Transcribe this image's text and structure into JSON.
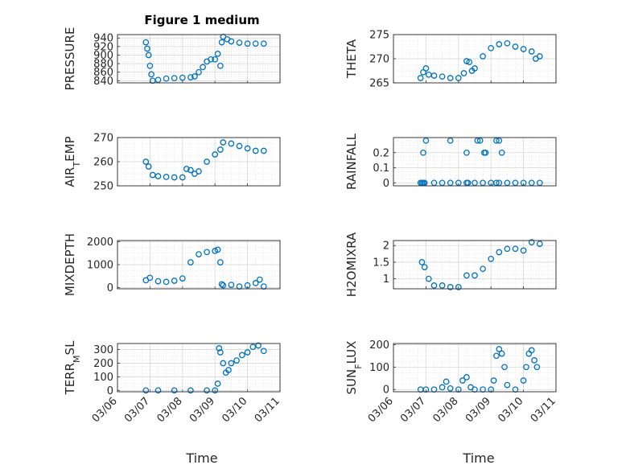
{
  "figure": {
    "title": "Figure 1 medium",
    "xlabel": "Time",
    "date_ticks": [
      "03/06",
      "03/07",
      "03/08",
      "03/09",
      "03/10",
      "03/11"
    ],
    "marker_color": "#0072BD",
    "grid": "on (major + minor)"
  },
  "chart_data": [
    {
      "type": "scatter",
      "ylabel": "PRESSURE",
      "xlim": [
        "03/06",
        "03/11"
      ],
      "ylim": [
        835,
        948
      ],
      "yticks": [
        840,
        860,
        880,
        900,
        920,
        940
      ],
      "x": [
        "03/06 21:00",
        "03/06 22:00",
        "03/06 23:00",
        "03/07 00:00",
        "03/07 01:00",
        "03/07 02:00",
        "03/07 06:00",
        "03/07 12:00",
        "03/07 18:00",
        "03/08 00:00",
        "03/08 06:00",
        "03/08 09:00",
        "03/08 12:00",
        "03/08 15:00",
        "03/08 18:00",
        "03/08 21:00",
        "03/09 00:00",
        "03/09 02:00",
        "03/09 04:00",
        "03/09 05:00",
        "03/09 06:00",
        "03/09 09:00",
        "03/09 12:00",
        "03/09 18:00",
        "03/10 00:00",
        "03/10 06:00",
        "03/10 12:00"
      ],
      "y": [
        930,
        915,
        900,
        875,
        855,
        840,
        842,
        845,
        846,
        847,
        848,
        850,
        860,
        872,
        885,
        890,
        890,
        903,
        875,
        930,
        943,
        937,
        932,
        929,
        927,
        927,
        927
      ]
    },
    {
      "type": "scatter",
      "ylabel": "THETA",
      "xlim": [
        "03/06",
        "03/11"
      ],
      "ylim": [
        265,
        275
      ],
      "yticks": [
        265,
        270,
        275
      ],
      "x": [
        "03/06 20:00",
        "03/06 22:00",
        "03/07 00:00",
        "03/07 02:00",
        "03/07 06:00",
        "03/07 12:00",
        "03/07 18:00",
        "03/08 00:00",
        "03/08 04:00",
        "03/08 06:00",
        "03/08 08:00",
        "03/08 10:00",
        "03/08 12:00",
        "03/08 18:00",
        "03/09 00:00",
        "03/09 06:00",
        "03/09 12:00",
        "03/09 18:00",
        "03/10 00:00",
        "03/10 06:00",
        "03/10 09:00",
        "03/10 12:00"
      ],
      "y": [
        266,
        267.2,
        268,
        266.7,
        266.5,
        266.3,
        266,
        266,
        267,
        269.5,
        269.3,
        267.5,
        268,
        270.5,
        272.2,
        273,
        273.2,
        272.5,
        272,
        271.5,
        270,
        270.5
      ]
    },
    {
      "type": "scatter",
      "ylabel": "AIR_TEMP",
      "xlim": [
        "03/06",
        "03/11"
      ],
      "ylim": [
        250,
        270
      ],
      "yticks": [
        250,
        260,
        270
      ],
      "x": [
        "03/06 21:00",
        "03/06 23:00",
        "03/07 02:00",
        "03/07 06:00",
        "03/07 12:00",
        "03/07 18:00",
        "03/08 00:00",
        "03/08 03:00",
        "03/08 06:00",
        "03/08 09:00",
        "03/08 12:00",
        "03/08 18:00",
        "03/09 00:00",
        "03/09 04:00",
        "03/09 06:00",
        "03/09 12:00",
        "03/09 18:00",
        "03/10 00:00",
        "03/10 06:00",
        "03/10 12:00"
      ],
      "y": [
        260,
        258,
        254.5,
        254,
        253.7,
        253.5,
        253.5,
        257,
        256.5,
        255,
        256,
        260,
        263,
        265,
        268,
        267.5,
        266.5,
        265.5,
        264.5,
        264.5
      ]
    },
    {
      "type": "scatter",
      "ylabel": "RAINFALL",
      "xlim": [
        "03/06",
        "03/11"
      ],
      "ylim": [
        -0.02,
        0.3
      ],
      "yticks": [
        0,
        0.1,
        0.2
      ],
      "x": [
        "03/06 20:00",
        "03/06 21:00",
        "03/06 22:00",
        "03/06 23:00",
        "03/07 06:00",
        "03/07 12:00",
        "03/07 18:00",
        "03/08 00:00",
        "03/08 06:00",
        "03/08 07:00",
        "03/08 12:00",
        "03/08 18:00",
        "03/09 00:00",
        "03/09 04:00",
        "03/09 06:00",
        "03/09 12:00",
        "03/09 18:00",
        "03/10 00:00",
        "03/10 06:00",
        "03/10 12:00",
        "03/06 22:00",
        "03/07 00:00",
        "03/07 18:00",
        "03/08 06:00",
        "03/08 14:00",
        "03/08 16:00",
        "03/08 19:00",
        "03/08 20:00",
        "03/09 04:00",
        "03/09 06:00",
        "03/09 08:00"
      ],
      "y": [
        0,
        0,
        0,
        0,
        0,
        0,
        0,
        0,
        0,
        0,
        0,
        0,
        0,
        0,
        0,
        0,
        0,
        0,
        0,
        0,
        0.2,
        0.28,
        0.28,
        0.2,
        0.28,
        0.28,
        0.2,
        0.2,
        0.28,
        0.28,
        0.2
      ]
    },
    {
      "type": "scatter",
      "ylabel": "MIXDEPTH",
      "xlim": [
        "03/06",
        "03/11"
      ],
      "ylim": [
        -50,
        2050
      ],
      "yticks": [
        0,
        1000,
        2000
      ],
      "x": [
        "03/06 21:00",
        "03/07 00:00",
        "03/07 06:00",
        "03/07 12:00",
        "03/07 18:00",
        "03/08 00:00",
        "03/08 06:00",
        "03/08 12:00",
        "03/08 18:00",
        "03/09 00:00",
        "03/09 02:00",
        "03/09 04:00",
        "03/09 05:00",
        "03/09 06:00",
        "03/09 12:00",
        "03/09 18:00",
        "03/10 00:00",
        "03/10 06:00",
        "03/10 09:00",
        "03/10 12:00"
      ],
      "y": [
        320,
        430,
        280,
        250,
        300,
        400,
        1100,
        1450,
        1550,
        1600,
        1650,
        1100,
        150,
        100,
        120,
        50,
        100,
        200,
        350,
        50
      ]
    },
    {
      "type": "scatter",
      "ylabel": "H2OMIXRA",
      "xlim": [
        "03/06",
        "03/11"
      ],
      "ylim": [
        0.7,
        2.15
      ],
      "yticks": [
        1,
        1.5,
        2
      ],
      "x": [
        "03/06 21:00",
        "03/06 23:00",
        "03/07 02:00",
        "03/07 06:00",
        "03/07 12:00",
        "03/07 18:00",
        "03/08 00:00",
        "03/08 06:00",
        "03/08 12:00",
        "03/08 18:00",
        "03/09 00:00",
        "03/09 06:00",
        "03/09 12:00",
        "03/09 18:00",
        "03/10 00:00",
        "03/10 06:00",
        "03/10 12:00"
      ],
      "y": [
        1.5,
        1.35,
        1,
        0.8,
        0.8,
        0.75,
        0.75,
        1.1,
        1.1,
        1.3,
        1.6,
        1.8,
        1.9,
        1.9,
        1.85,
        2.1,
        2.05
      ]
    },
    {
      "type": "scatter",
      "ylabel": "TERR_MSL",
      "xlim": [
        "03/06",
        "03/11"
      ],
      "ylim": [
        -10,
        345
      ],
      "yticks": [
        0,
        100,
        200,
        300
      ],
      "x": [
        "03/06 21:00",
        "03/07 06:00",
        "03/07 18:00",
        "03/08 06:00",
        "03/08 18:00",
        "03/09 00:00",
        "03/09 02:00",
        "03/09 03:00",
        "03/09 04:00",
        "03/09 06:00",
        "03/09 08:00",
        "03/09 10:00",
        "03/09 12:00",
        "03/09 16:00",
        "03/09 20:00",
        "03/10 00:00",
        "03/10 04:00",
        "03/10 08:00",
        "03/10 12:00"
      ],
      "y": [
        0,
        0,
        0,
        0,
        0,
        0,
        50,
        310,
        280,
        200,
        130,
        150,
        200,
        220,
        260,
        280,
        320,
        330,
        290
      ]
    },
    {
      "type": "scatter",
      "ylabel": "SUN_FLUX",
      "xlim": [
        "03/06",
        "03/11"
      ],
      "ylim": [
        -10,
        205
      ],
      "yticks": [
        0,
        100,
        200
      ],
      "x": [
        "03/06 20:00",
        "03/07 00:00",
        "03/07 06:00",
        "03/07 12:00",
        "03/07 15:00",
        "03/07 18:00",
        "03/08 00:00",
        "03/08 03:00",
        "03/08 06:00",
        "03/08 09:00",
        "03/08 12:00",
        "03/08 18:00",
        "03/09 00:00",
        "03/09 02:00",
        "03/09 04:00",
        "03/09 06:00",
        "03/09 08:00",
        "03/09 10:00",
        "03/09 12:00",
        "03/09 18:00",
        "03/10 00:00",
        "03/10 02:00",
        "03/10 04:00",
        "03/10 06:00",
        "03/10 08:00",
        "03/10 10:00"
      ],
      "y": [
        0,
        0,
        0,
        10,
        35,
        5,
        0,
        40,
        55,
        10,
        0,
        0,
        0,
        40,
        150,
        180,
        160,
        100,
        20,
        0,
        40,
        100,
        160,
        175,
        130,
        100
      ]
    }
  ]
}
